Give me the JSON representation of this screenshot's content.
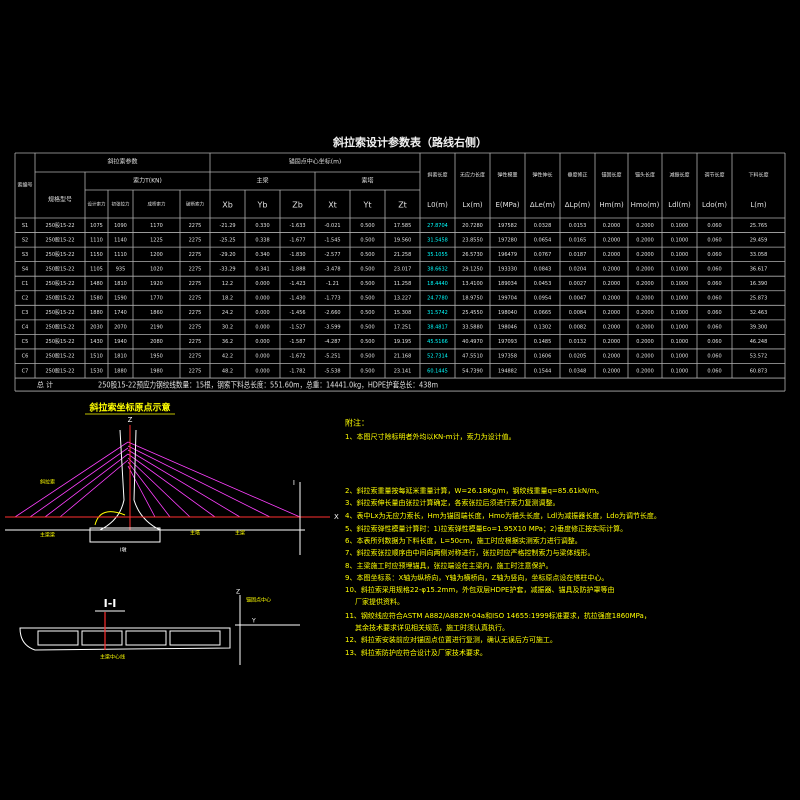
{
  "title": "斜拉索设计参数表（路线右侧）",
  "table": {
    "header": {
      "row_label": "索编号",
      "cable_group": "斜拉索参数",
      "spec": "规格型号",
      "force_group": "索力T(KN)",
      "force_cols": [
        "设计索力",
        "初张拉力",
        "成桥索力",
        "破断索力"
      ],
      "coord_group": "锚固点中心坐标(m)",
      "beam": "主梁",
      "tower": "索塔",
      "coord_cols": [
        "Xb",
        "Yb",
        "Zb",
        "Xt",
        "Yt",
        "Zt"
      ],
      "other_top": [
        "斜索长度",
        "无应力长度",
        "弹性模量",
        "弹性伸长",
        "垂度修正",
        "锚固长度",
        "锚头长度",
        "减振长度",
        "调节长度",
        "下料长度"
      ],
      "other_units": [
        "L0(m)",
        "Lx(m)",
        "E(MPa)",
        "ΔLe(m)",
        "ΔLp(m)",
        "Hm(m)",
        "Hmo(m)",
        "Ldl(m)",
        "Ldo(m)",
        "L(m)"
      ]
    },
    "rows": [
      [
        "S1",
        "250股15-22",
        "1075",
        "1090",
        "1170",
        "2275",
        "-21.29",
        "0.330",
        "-1.633",
        "-0.021",
        "0.500",
        "17.585",
        "27.8704",
        "20.7280",
        "197582",
        "0.0328",
        "0.0153",
        "0.2000",
        "0.2000",
        "0.1000",
        "0.060",
        "25.765"
      ],
      [
        "S2",
        "250股15-22",
        "1110",
        "1140",
        "1225",
        "2275",
        "-25.25",
        "0.338",
        "-1.677",
        "-1.545",
        "0.500",
        "19.560",
        "31.5458",
        "23.8550",
        "197280",
        "0.0654",
        "0.0165",
        "0.2000",
        "0.2000",
        "0.1000",
        "0.060",
        "29.459"
      ],
      [
        "S3",
        "250股15-22",
        "1150",
        "1110",
        "1200",
        "2275",
        "-29.20",
        "0.340",
        "-1.830",
        "-2.577",
        "0.500",
        "21.258",
        "35.1055",
        "26.5730",
        "196479",
        "0.0767",
        "0.0187",
        "0.2000",
        "0.2000",
        "0.1000",
        "0.060",
        "33.058"
      ],
      [
        "S4",
        "250股15-22",
        "1105",
        "935",
        "1020",
        "2275",
        "-33.29",
        "0.341",
        "-1.888",
        "-3.478",
        "0.500",
        "23.017",
        "38.6632",
        "29.1250",
        "193330",
        "0.0843",
        "0.0204",
        "0.2000",
        "0.2000",
        "0.1000",
        "0.060",
        "36.617"
      ],
      [
        "C1",
        "250股15-22",
        "1480",
        "1810",
        "1920",
        "2275",
        "12.2",
        "0.000",
        "-1.423",
        "-1.21",
        "0.500",
        "11.258",
        "18.4440",
        "13.4100",
        "189034",
        "0.0453",
        "0.0027",
        "0.2000",
        "0.2000",
        "0.1000",
        "0.060",
        "16.390"
      ],
      [
        "C2",
        "250股15-22",
        "1580",
        "1590",
        "1770",
        "2275",
        "18.2",
        "0.000",
        "-1.430",
        "-1.773",
        "0.500",
        "13.227",
        "24.7780",
        "18.9750",
        "199704",
        "0.0954",
        "0.0047",
        "0.2000",
        "0.2000",
        "0.1000",
        "0.060",
        "25.873"
      ],
      [
        "C3",
        "250股15-22",
        "1880",
        "1740",
        "1860",
        "2275",
        "24.2",
        "0.000",
        "-1.456",
        "-2.660",
        "0.500",
        "15.308",
        "31.5742",
        "25.4550",
        "198040",
        "0.0665",
        "0.0084",
        "0.2000",
        "0.2000",
        "0.1000",
        "0.060",
        "32.463"
      ],
      [
        "C4",
        "250股15-22",
        "2030",
        "2070",
        "2190",
        "2275",
        "30.2",
        "0.000",
        "-1.527",
        "-3.599",
        "0.500",
        "17.251",
        "38.4817",
        "33.5880",
        "198046",
        "0.1302",
        "0.0082",
        "0.2000",
        "0.2000",
        "0.1000",
        "0.060",
        "39.300"
      ],
      [
        "C5",
        "250股15-22",
        "1430",
        "1940",
        "2080",
        "2275",
        "36.2",
        "0.000",
        "-1.587",
        "-4.287",
        "0.500",
        "19.195",
        "45.5166",
        "40.4970",
        "197093",
        "0.1485",
        "0.0132",
        "0.2000",
        "0.2000",
        "0.1000",
        "0.060",
        "46.248"
      ],
      [
        "C6",
        "250股15-22",
        "1510",
        "1810",
        "1950",
        "2275",
        "42.2",
        "0.000",
        "-1.672",
        "-5.251",
        "0.500",
        "21.168",
        "52.7314",
        "47.5510",
        "197358",
        "0.1606",
        "0.0205",
        "0.2000",
        "0.2000",
        "0.1000",
        "0.060",
        "53.572"
      ],
      [
        "C7",
        "250股15-22",
        "1530",
        "1880",
        "1980",
        "2275",
        "48.2",
        "0.000",
        "-1.782",
        "-5.538",
        "0.500",
        "23.141",
        "60.1445",
        "54.7390",
        "194882",
        "0.1544",
        "0.0348",
        "0.2000",
        "0.2000",
        "0.1000",
        "0.060",
        "60.873"
      ]
    ],
    "total_label": "总  计",
    "total_text": "250股15-22预应力钢绞线数量：15根，钢索下料总长度：551.60m，总重：14441.0kg，HDPE护套总长：438m"
  },
  "diagram": {
    "title": "斜拉索坐标原点示意",
    "z": "Z",
    "x": "X",
    "cable": "斜拉索",
    "beam": "主梁",
    "tower": "主塔",
    "pier": "I墩",
    "section_mark": "I",
    "left_beam": "主梁梁"
  },
  "section": {
    "title": "I-I",
    "axis_y": "Y",
    "axis_z": "Z",
    "label1": "锚固点中心",
    "label2": "主梁中心线"
  },
  "notes": {
    "heading": "附注：",
    "items": [
      [
        "1、本图尺寸除标明者外均以KN-m计，索力为设计值。"
      ],
      [
        "2、斜拉索重量按每延米重量计算，W=26.18Kg/m，钢绞线重量q=85.61kN/m。"
      ],
      [
        "3、斜拉索伸长量由张拉计算确定，各索张拉后须进行索力复测调整。"
      ],
      [
        "4、表中Lx为无应力索长，Hm为锚固端长度，Hmo为锚头长度，Ldl为减振器长度，Ldo为调节长度。"
      ],
      [
        "5、斜拉索弹性模量计算时：1)拉索弹性模量Eo=1.95X10 MPa；2)垂度修正按实际计算。"
      ],
      [
        "6、本表所列数据为下料长度，L=50cm，施工时应根据实测索力进行调整。"
      ],
      [
        "7、斜拉索张拉顺序由中间向两侧对称进行，张拉时应严格控制索力与梁体线形。"
      ],
      [
        "8、主梁施工时应预埋锚具，张拉端设在主梁内，施工时注意保护。"
      ],
      [
        "9、本图坐标系：X轴为纵桥向，Y轴为横桥向，Z轴为竖向，坐标原点设在塔柱中心。"
      ],
      [
        "10、斜拉索采用规格22-φ15.2mm，外包双层HDPE护套，减振器、锚具及防护罩等由",
        "厂家提供资料。"
      ],
      [
        "11、钢绞线应符合ASTM A882/A882M-04a和ISO 14655:1999标准要求，抗拉强度1860MPa，",
        "其余技术要求详见相关规范，施工时须认真执行。"
      ],
      [
        "12、斜拉索安装前应对锚固点位置进行复测，确认无误后方可施工。"
      ],
      [
        "13、斜拉索防护应符合设计及厂家技术要求。"
      ]
    ]
  }
}
